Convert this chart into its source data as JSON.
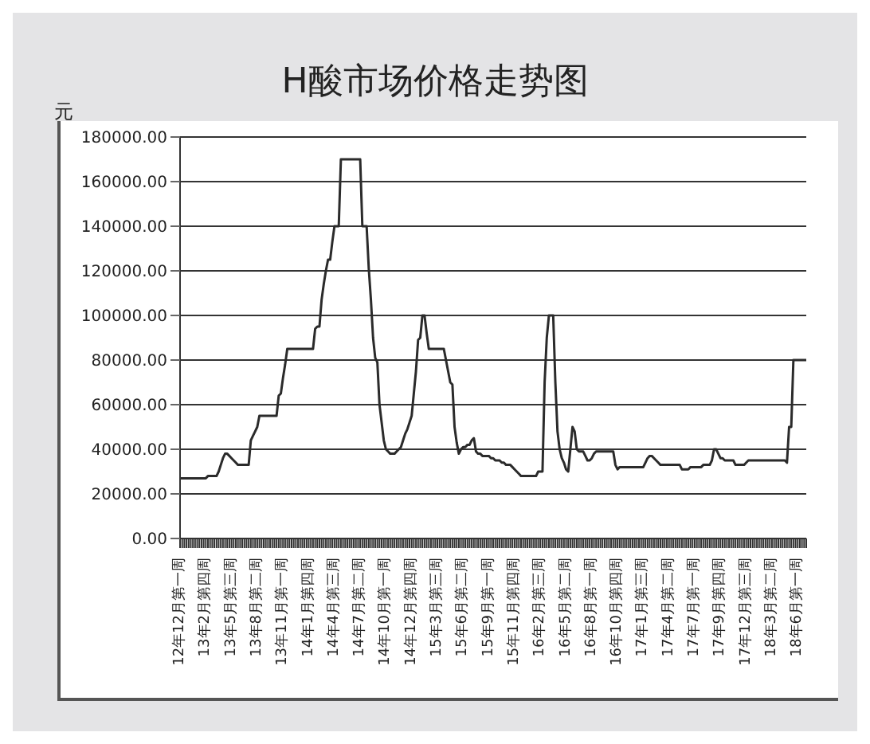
{
  "chart_data": {
    "type": "line",
    "title": "H酸市场价格走势图",
    "ylabel": "元",
    "categories": [
      "12年12月第一周",
      null,
      null,
      null,
      null,
      null,
      null,
      null,
      null,
      null,
      null,
      null,
      "13年2月第四周",
      null,
      null,
      null,
      null,
      null,
      null,
      null,
      null,
      null,
      null,
      null,
      "13年5月第三周",
      null,
      null,
      null,
      null,
      null,
      null,
      null,
      null,
      null,
      null,
      null,
      "13年8月第二周",
      null,
      null,
      null,
      null,
      null,
      null,
      null,
      null,
      null,
      null,
      null,
      "13年11月第一周",
      null,
      null,
      null,
      null,
      null,
      null,
      null,
      null,
      null,
      null,
      null,
      "14年1月第四周",
      null,
      null,
      null,
      null,
      null,
      null,
      null,
      null,
      null,
      null,
      null,
      "14年4月第三周",
      null,
      null,
      null,
      null,
      null,
      null,
      null,
      null,
      null,
      null,
      null,
      "14年7月第二周",
      null,
      null,
      null,
      null,
      null,
      null,
      null,
      null,
      null,
      null,
      null,
      "14年10月第一周",
      null,
      null,
      null,
      null,
      null,
      null,
      null,
      null,
      null,
      null,
      null,
      "14年12月第四周",
      null,
      null,
      null,
      null,
      null,
      null,
      null,
      null,
      null,
      null,
      null,
      "15年3月第三周",
      null,
      null,
      null,
      null,
      null,
      null,
      null,
      null,
      null,
      null,
      null,
      "15年6月第二周",
      null,
      null,
      null,
      null,
      null,
      null,
      null,
      null,
      null,
      null,
      null,
      "15年9月第一周",
      null,
      null,
      null,
      null,
      null,
      null,
      null,
      null,
      null,
      null,
      null,
      "15年11月第四周",
      null,
      null,
      null,
      null,
      null,
      null,
      null,
      null,
      null,
      null,
      null,
      "16年2月第三周",
      null,
      null,
      null,
      null,
      null,
      null,
      null,
      null,
      null,
      null,
      null,
      "16年5月第二周",
      null,
      null,
      null,
      null,
      null,
      null,
      null,
      null,
      null,
      null,
      null,
      "16年8月第一周",
      null,
      null,
      null,
      null,
      null,
      null,
      null,
      null,
      null,
      null,
      null,
      "16年10月第四周",
      null,
      null,
      null,
      null,
      null,
      null,
      null,
      null,
      null,
      null,
      null,
      "17年1月第三周",
      null,
      null,
      null,
      null,
      null,
      null,
      null,
      null,
      null,
      null,
      null,
      "17年4月第二周",
      null,
      null,
      null,
      null,
      null,
      null,
      null,
      null,
      null,
      null,
      null,
      "17年7月第一周",
      null,
      null,
      null,
      null,
      null,
      null,
      null,
      null,
      null,
      null,
      null,
      "17年9月第四周",
      null,
      null,
      null,
      null,
      null,
      null,
      null,
      null,
      null,
      null,
      null,
      "17年12月第三周",
      null,
      null,
      null,
      null,
      null,
      null,
      null,
      null,
      null,
      null,
      null,
      "18年3月第二周",
      null,
      null,
      null,
      null,
      null,
      null,
      null,
      null,
      null,
      null,
      null,
      "18年6月第一周",
      null,
      null,
      null,
      null
    ],
    "series": [
      {
        "color": "#2b2b2b",
        "values": [
          27000,
          27000,
          27000,
          27000,
          27000,
          27000,
          27000,
          27000,
          27000,
          27000,
          27000,
          27000,
          27000,
          28000,
          28000,
          28000,
          28000,
          28000,
          30000,
          33000,
          36000,
          38000,
          38000,
          37000,
          36000,
          35000,
          34000,
          33000,
          33000,
          33000,
          33000,
          33000,
          33000,
          44000,
          46000,
          48000,
          50000,
          55000,
          55000,
          55000,
          55000,
          55000,
          55000,
          55000,
          55000,
          55000,
          64000,
          65000,
          72000,
          78000,
          85000,
          85000,
          85000,
          85000,
          85000,
          85000,
          85000,
          85000,
          85000,
          85000,
          85000,
          85000,
          85000,
          94000,
          95000,
          95000,
          107000,
          114000,
          120000,
          125000,
          125000,
          133000,
          140000,
          140000,
          140000,
          170000,
          170000,
          170000,
          170000,
          170000,
          170000,
          170000,
          170000,
          170000,
          170000,
          140000,
          140000,
          140000,
          121000,
          107000,
          90000,
          81000,
          79000,
          60000,
          52000,
          44000,
          40000,
          39000,
          38000,
          38000,
          38000,
          39000,
          40000,
          41000,
          44000,
          47000,
          49000,
          52000,
          55000,
          65000,
          75000,
          89000,
          90000,
          100000,
          100000,
          92000,
          85000,
          85000,
          85000,
          85000,
          85000,
          85000,
          85000,
          85000,
          80000,
          75000,
          70000,
          69000,
          50000,
          43000,
          38000,
          40000,
          41000,
          41000,
          42000,
          42000,
          44000,
          45000,
          39000,
          38000,
          38000,
          37000,
          37000,
          37000,
          37000,
          36000,
          36000,
          35000,
          35000,
          35000,
          34000,
          34000,
          33000,
          33000,
          33000,
          32000,
          31000,
          30000,
          29000,
          28000,
          28000,
          28000,
          28000,
          28000,
          28000,
          28000,
          28000,
          30000,
          30000,
          30000,
          70000,
          90000,
          100000,
          100000,
          100000,
          70000,
          48000,
          40000,
          36000,
          34000,
          31000,
          30000,
          40000,
          50000,
          48000,
          40000,
          39000,
          39000,
          39000,
          37000,
          35000,
          35000,
          36000,
          38000,
          39000,
          39000,
          39000,
          39000,
          39000,
          39000,
          39000,
          39000,
          39000,
          33000,
          31000,
          32000,
          32000,
          32000,
          32000,
          32000,
          32000,
          32000,
          32000,
          32000,
          32000,
          32000,
          32000,
          34000,
          36000,
          37000,
          37000,
          36000,
          35000,
          34000,
          33000,
          33000,
          33000,
          33000,
          33000,
          33000,
          33000,
          33000,
          33000,
          33000,
          31000,
          31000,
          31000,
          31000,
          32000,
          32000,
          32000,
          32000,
          32000,
          32000,
          33000,
          33000,
          33000,
          33000,
          35000,
          40000,
          40000,
          38000,
          36000,
          36000,
          35000,
          35000,
          35000,
          35000,
          35000,
          33000,
          33000,
          33000,
          33000,
          33000,
          34000,
          35000,
          35000,
          35000,
          35000,
          35000,
          35000,
          35000,
          35000,
          35000,
          35000,
          35000,
          35000,
          35000,
          35000,
          35000,
          35000,
          35000,
          35000,
          34000,
          50000,
          50000,
          80000,
          80000,
          80000,
          80000,
          80000,
          80000,
          80000
        ]
      }
    ],
    "ylim": [
      0,
      180000
    ],
    "yticks": [
      {
        "value": 0,
        "label": "0.00"
      },
      {
        "value": 20000,
        "label": "20000.00"
      },
      {
        "value": 40000,
        "label": "40000.00"
      },
      {
        "value": 60000,
        "label": "60000.00"
      },
      {
        "value": 80000,
        "label": "80000.00"
      },
      {
        "value": 100000,
        "label": "100000.00"
      },
      {
        "value": 120000,
        "label": "120000.00"
      },
      {
        "value": 140000,
        "label": "140000.00"
      },
      {
        "value": 160000,
        "label": "160000.00"
      },
      {
        "value": 180000,
        "label": "180000.00"
      }
    ],
    "grid": "y",
    "legend": false,
    "marker": "none",
    "line_style": "solid"
  }
}
